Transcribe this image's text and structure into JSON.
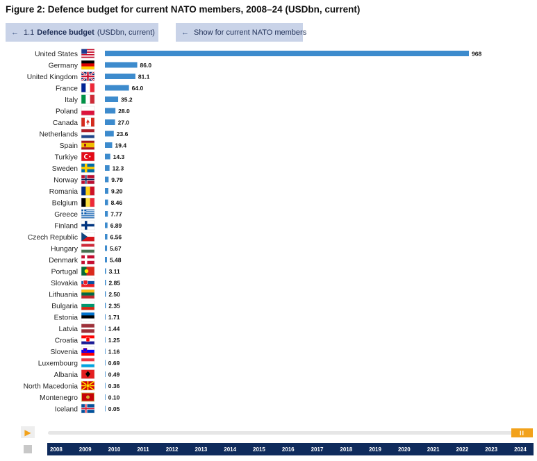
{
  "title": "Figure 2: Defence budget for current NATO members, 2008–24 (USDbn, current)",
  "tabs": [
    {
      "prefix": "1.1",
      "bold": "Defence budget",
      "suffix": "(USDbn, current)"
    },
    {
      "prefix": "",
      "bold": "",
      "suffix": "Show for current NATO members"
    }
  ],
  "colors": {
    "bar": "#3d8bcd",
    "accent": "#f2a21b",
    "navy": "#0f2b5c",
    "tab": "#c9d3e8"
  },
  "chart_data": {
    "type": "bar",
    "orientation": "horizontal",
    "categories": [
      "United States",
      "Germany",
      "United Kingdom",
      "France",
      "Italy",
      "Poland",
      "Canada",
      "Netherlands",
      "Spain",
      "Turkiye",
      "Sweden",
      "Norway",
      "Romania",
      "Belgium",
      "Greece",
      "Finland",
      "Czech Republic",
      "Hungary",
      "Denmark",
      "Portugal",
      "Slovakia",
      "Lithuania",
      "Bulgaria",
      "Estonia",
      "Latvia",
      "Croatia",
      "Slovenia",
      "Luxembourg",
      "Albania",
      "North Macedonia",
      "Montenegro",
      "Iceland"
    ],
    "values": [
      968,
      86.0,
      81.1,
      64.0,
      35.2,
      28.0,
      27.0,
      23.6,
      19.4,
      14.3,
      12.3,
      9.79,
      9.2,
      8.46,
      7.77,
      6.89,
      6.56,
      5.67,
      5.48,
      3.11,
      2.85,
      2.5,
      2.35,
      1.71,
      1.44,
      1.25,
      1.16,
      0.69,
      0.49,
      0.36,
      0.1,
      0.05
    ],
    "value_labels": [
      "968",
      "86.0",
      "81.1",
      "64.0",
      "35.2",
      "28.0",
      "27.0",
      "23.6",
      "19.4",
      "14.3",
      "12.3",
      "9.79",
      "9.20",
      "8.46",
      "7.77",
      "6.89",
      "6.56",
      "5.67",
      "5.48",
      "3.11",
      "2.85",
      "2.50",
      "2.35",
      "1.71",
      "1.44",
      "1.25",
      "1.16",
      "0.69",
      "0.49",
      "0.36",
      "0.10",
      "0.05"
    ],
    "flags": [
      "us",
      "de",
      "gb",
      "fr",
      "it",
      "pl",
      "ca",
      "nl",
      "es",
      "tr",
      "se",
      "no",
      "ro",
      "be",
      "gr",
      "fi",
      "cz",
      "hu",
      "dk",
      "pt",
      "sk",
      "lt",
      "bg",
      "ee",
      "lv",
      "hr",
      "si",
      "lu",
      "al",
      "mk",
      "me",
      "is"
    ],
    "xlim": [
      0,
      968
    ],
    "grid": false,
    "title": "",
    "xlabel": "",
    "ylabel": ""
  },
  "timeline": {
    "years": [
      "2008",
      "2009",
      "2010",
      "2011",
      "2012",
      "2013",
      "2014",
      "2015",
      "2016",
      "2017",
      "2018",
      "2019",
      "2020",
      "2021",
      "2022",
      "2023",
      "2024"
    ],
    "selected": "2024",
    "pause_label": "II"
  }
}
